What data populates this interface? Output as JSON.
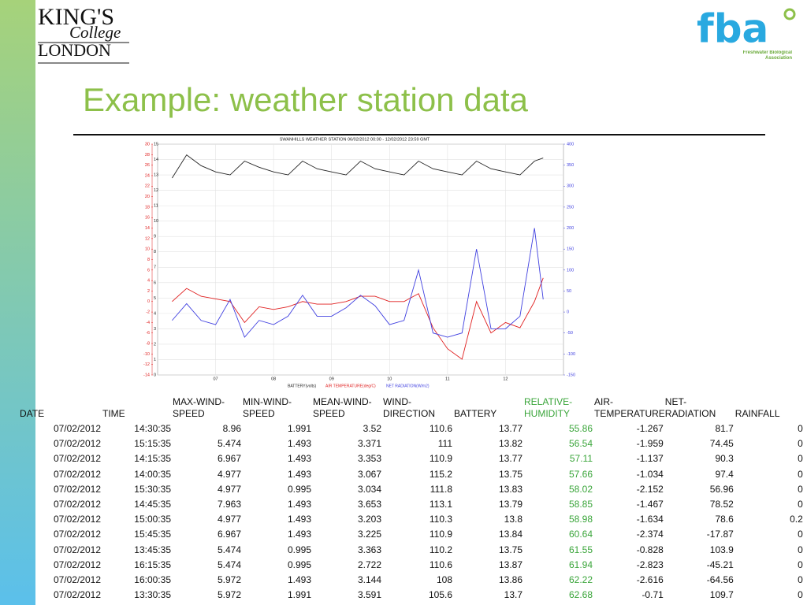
{
  "logos": {
    "kings": [
      "KING'S",
      "College",
      "LONDON"
    ],
    "fba": "fba",
    "fba_subtitle": "Freshwater Biological Association"
  },
  "title": "Example: weather station data",
  "chart_data": {
    "type": "line",
    "title": "SWANHILLS WEATHER STATION 06/02/2012 00:00 - 12/02/2012 23:59 GMT",
    "x": [
      6.25,
      6.5,
      6.75,
      7.0,
      7.25,
      7.5,
      7.75,
      8.0,
      8.25,
      8.5,
      8.75,
      9.0,
      9.25,
      9.5,
      9.75,
      10.0,
      10.25,
      10.5,
      10.75,
      11.0,
      11.25,
      11.5,
      11.75,
      12.0,
      12.25,
      12.5,
      12.65
    ],
    "xlim": [
      6,
      13
    ],
    "xticks": [
      {
        "value": 7,
        "label": "07"
      },
      {
        "value": 8,
        "label": "08"
      },
      {
        "value": 9,
        "label": "09"
      },
      {
        "value": 10,
        "label": "10"
      },
      {
        "value": 11,
        "label": "11"
      },
      {
        "value": 12,
        "label": "12"
      }
    ],
    "ylim": [
      0,
      15
    ],
    "yticks": [
      0,
      1,
      2,
      3,
      4,
      5,
      6,
      7,
      8,
      9,
      10,
      11,
      12,
      13,
      14,
      15
    ],
    "y2lim": [
      -150,
      400
    ],
    "y2ticks": [
      -150,
      -100,
      -50,
      0,
      50,
      100,
      150,
      200,
      250,
      300,
      350,
      400
    ],
    "y3lim": [
      -14,
      30
    ],
    "y3ticks": [
      -14,
      -12,
      -10,
      -8,
      -6,
      -4,
      -2,
      0,
      2,
      4,
      6,
      8,
      10,
      12,
      14,
      16,
      18,
      20,
      22,
      24,
      26,
      28,
      30
    ],
    "grid": true,
    "series": [
      {
        "name": "BATTERY(volts)",
        "color": "#222222",
        "axis": "y",
        "values": [
          12.8,
          14.3,
          13.6,
          13.2,
          13.0,
          13.9,
          13.5,
          13.2,
          13.0,
          13.9,
          13.4,
          13.2,
          13.0,
          13.9,
          13.4,
          13.2,
          13.0,
          13.9,
          13.4,
          13.2,
          13.0,
          13.9,
          13.4,
          13.2,
          13.0,
          13.9,
          14.1
        ]
      },
      {
        "name": "AIR TEMPERATURE(deg/C)",
        "color": "#e02020",
        "axis": "y3",
        "values": [
          0,
          2.5,
          1,
          0.5,
          0,
          -4,
          -1,
          -1.5,
          -1,
          0,
          -0.5,
          -0.5,
          0,
          1,
          1,
          0,
          0,
          1.5,
          -5,
          -9,
          -11,
          0,
          -6,
          -4,
          -5,
          0,
          4.5
        ]
      },
      {
        "name": "NET RADIATION(W/m2)",
        "color": "#4040e0",
        "axis": "y2",
        "values": [
          -20,
          20,
          -20,
          -30,
          30,
          -60,
          -20,
          -30,
          -10,
          40,
          -10,
          -10,
          10,
          40,
          15,
          -30,
          -20,
          100,
          -50,
          -60,
          -50,
          150,
          -40,
          -40,
          -10,
          200,
          30
        ]
      }
    ]
  },
  "table": {
    "columns": [
      "DATE",
      "TIME",
      "MAX-WIND-SPEED",
      "MIN-WIND-SPEED",
      "MEAN-WIND-SPEED",
      "WIND-DIRECTION",
      "BATTERY",
      "RELATIVE-HUMIDITY",
      "AIR-TEMPERATURE",
      "NET-RADIATION",
      "RAINFALL"
    ],
    "rows": [
      [
        "07/02/2012",
        "14:30:35",
        8.96,
        1.991,
        3.52,
        110.6,
        13.77,
        55.86,
        -1.267,
        81.7,
        0
      ],
      [
        "07/02/2012",
        "15:15:35",
        5.474,
        1.493,
        3.371,
        111,
        13.82,
        56.54,
        -1.959,
        74.45,
        0
      ],
      [
        "07/02/2012",
        "14:15:35",
        6.967,
        1.493,
        3.353,
        110.9,
        13.77,
        57.11,
        -1.137,
        90.3,
        0
      ],
      [
        "07/02/2012",
        "14:00:35",
        4.977,
        1.493,
        3.067,
        115.2,
        13.75,
        57.66,
        -1.034,
        97.4,
        0
      ],
      [
        "07/02/2012",
        "15:30:35",
        4.977,
        0.995,
        3.034,
        111.8,
        13.83,
        58.02,
        -2.152,
        56.96,
        0
      ],
      [
        "07/02/2012",
        "14:45:35",
        7.963,
        1.493,
        3.653,
        113.1,
        13.79,
        58.85,
        -1.467,
        78.52,
        0
      ],
      [
        "07/02/2012",
        "15:00:35",
        4.977,
        1.493,
        3.203,
        110.3,
        13.8,
        58.98,
        -1.634,
        78.6,
        0.2
      ],
      [
        "07/02/2012",
        "15:45:35",
        6.967,
        1.493,
        3.225,
        110.9,
        13.84,
        60.64,
        -2.374,
        -17.87,
        0
      ],
      [
        "07/02/2012",
        "13:45:35",
        5.474,
        0.995,
        3.363,
        110.2,
        13.75,
        61.55,
        -0.828,
        103.9,
        0
      ],
      [
        "07/02/2012",
        "16:15:35",
        5.474,
        0.995,
        2.722,
        110.6,
        13.87,
        61.94,
        -2.823,
        -45.21,
        0
      ],
      [
        "07/02/2012",
        "16:00:35",
        5.972,
        1.493,
        3.144,
        108,
        13.86,
        62.22,
        -2.616,
        -64.56,
        0
      ],
      [
        "07/02/2012",
        "13:30:35",
        5.972,
        1.991,
        3.591,
        105.6,
        13.7,
        62.68,
        -0.71,
        109.7,
        0
      ]
    ]
  }
}
